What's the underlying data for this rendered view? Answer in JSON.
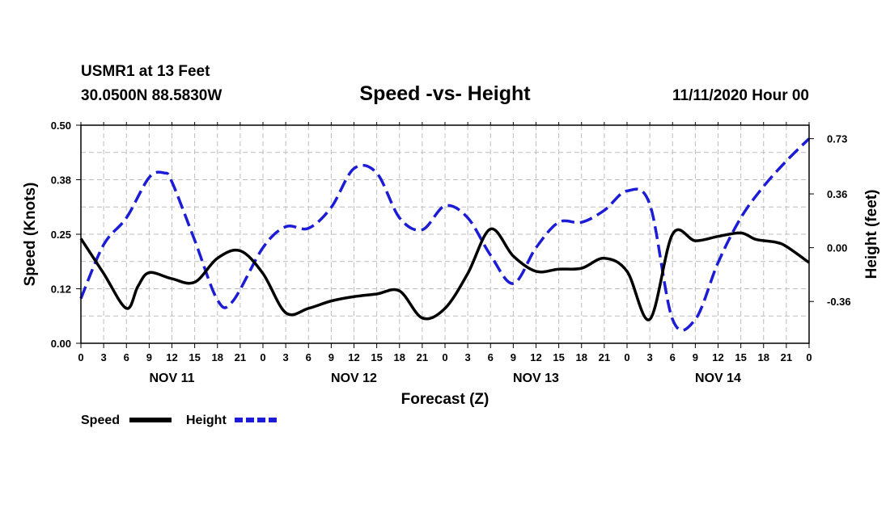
{
  "header": {
    "station": "USMR1 at 13 Feet",
    "location": "30.0500N 88.5830W",
    "title": "Speed -vs- Height",
    "date": "11/11/2020 Hour 00"
  },
  "chart_data": {
    "type": "line",
    "title": "Speed -vs- Height",
    "xlabel": "Forecast (Z)",
    "ylabel": "Speed (Knots)",
    "y2label": "Height (feet)",
    "x_tick_labels": [
      "0",
      "3",
      "6",
      "9",
      "12",
      "15",
      "18",
      "21",
      "0",
      "3",
      "6",
      "9",
      "12",
      "15",
      "18",
      "21",
      "0",
      "3",
      "6",
      "9",
      "12",
      "15",
      "18",
      "21",
      "0",
      "3",
      "6",
      "9",
      "12",
      "15",
      "18",
      "21",
      "0"
    ],
    "day_labels": [
      "NOV 11",
      "NOV 12",
      "NOV 13",
      "NOV 14"
    ],
    "xlim": [
      0,
      96
    ],
    "ylim": [
      0,
      0.5
    ],
    "y_ticks": [
      "0.00",
      "0.12",
      "0.25",
      "0.38",
      "0.50"
    ],
    "y_tick_values": [
      0,
      0.125,
      0.25,
      0.375,
      0.5
    ],
    "y2lim": [
      -0.64,
      0.82
    ],
    "y2_ticks": [
      "-0.36",
      "0.00",
      "0.36",
      "0.73"
    ],
    "y2_tick_values": [
      -0.36,
      0,
      0.36,
      0.73
    ],
    "grid": true,
    "legend_position": "bottom-left",
    "series": [
      {
        "name": "Speed",
        "axis": "left",
        "color": "#000000",
        "style": "solid",
        "x": [
          0,
          3,
          6,
          7.5,
          9,
          12,
          15,
          18,
          21,
          24,
          27,
          30,
          33,
          36,
          39,
          42,
          45,
          48,
          51,
          54,
          57,
          60,
          63,
          66,
          69,
          72,
          75,
          78,
          81,
          84,
          87,
          89,
          91.5,
          93,
          96
        ],
        "y": [
          0.24,
          0.16,
          0.08,
          0.13,
          0.162,
          0.148,
          0.14,
          0.195,
          0.212,
          0.16,
          0.07,
          0.08,
          0.097,
          0.107,
          0.113,
          0.12,
          0.058,
          0.08,
          0.16,
          0.262,
          0.2,
          0.165,
          0.17,
          0.172,
          0.195,
          0.165,
          0.055,
          0.25,
          0.235,
          0.245,
          0.253,
          0.238,
          0.232,
          0.222,
          0.185
        ]
      },
      {
        "name": "Height",
        "axis": "right",
        "color": "#1c1cd6",
        "style": "dashed",
        "x": [
          0,
          3,
          6,
          9,
          11,
          12,
          15,
          18,
          20,
          24,
          27,
          30,
          33,
          36,
          39,
          42,
          45,
          48,
          51,
          54,
          57,
          60,
          63,
          66,
          69,
          72,
          75,
          78,
          81,
          84,
          87,
          90,
          93,
          96
        ],
        "y": [
          -0.34,
          0.02,
          0.2,
          0.47,
          0.5,
          0.44,
          0.05,
          -0.35,
          -0.36,
          0.0,
          0.14,
          0.13,
          0.27,
          0.53,
          0.5,
          0.2,
          0.12,
          0.28,
          0.2,
          -0.05,
          -0.24,
          0.0,
          0.17,
          0.17,
          0.25,
          0.38,
          0.29,
          -0.48,
          -0.48,
          -0.1,
          0.2,
          0.41,
          0.58,
          0.73
        ]
      }
    ]
  }
}
